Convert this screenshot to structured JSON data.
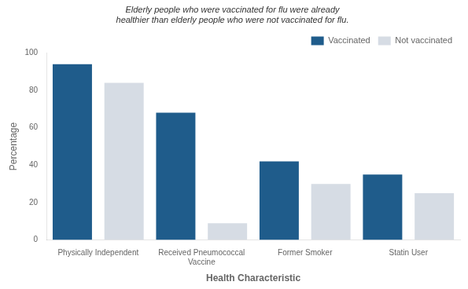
{
  "chart_data": {
    "type": "bar",
    "annotation": "Elderly people who were vaccinated for flu were already\nhealthier than elderly people who were not vaccinated for flu.",
    "xlabel": "Health Characteristic",
    "ylabel": "Percentage",
    "categories": [
      "Physically Independent",
      "Received Pneumococcal\nVaccine",
      "Former Smoker",
      "Statin User"
    ],
    "series": [
      {
        "name": "Vaccinated",
        "color": "#1F5C8B",
        "values": [
          94,
          68,
          42,
          35
        ]
      },
      {
        "name": "Not vaccinated",
        "color": "#D6DCE4",
        "values": [
          84,
          9,
          30,
          25
        ]
      }
    ],
    "ylim": [
      0,
      100
    ],
    "yticks": [
      0,
      20,
      40,
      60,
      80,
      100
    ],
    "grid": false,
    "legend": "upper right"
  }
}
